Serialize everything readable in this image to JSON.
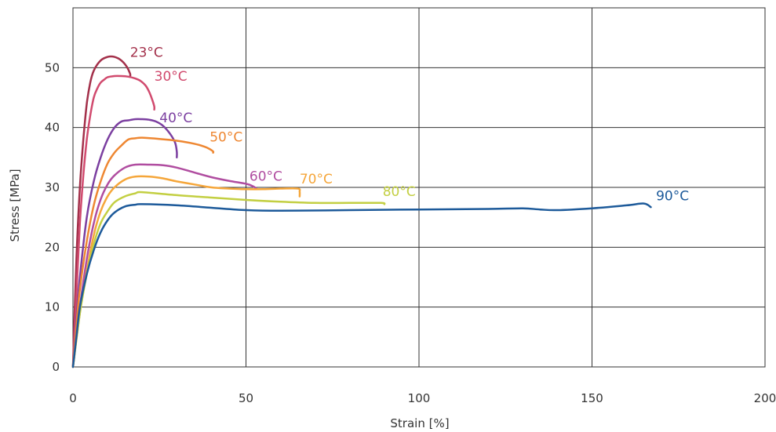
{
  "chart_data": {
    "type": "line",
    "title": "",
    "xlabel": "Strain [%]",
    "ylabel": "Stress [MPa]",
    "xlim": [
      0,
      200
    ],
    "ylim": [
      0,
      60
    ],
    "xticks": [
      0,
      50,
      100,
      150,
      200
    ],
    "yticks": [
      0,
      10,
      20,
      30,
      40,
      50
    ],
    "xtick_labels": [
      "0",
      "50",
      "100",
      "150",
      "200"
    ],
    "ytick_labels": [
      "0",
      "10",
      "20",
      "30",
      "40",
      "50"
    ],
    "grid": true,
    "legend": "inline labels at curve ends",
    "series": [
      {
        "name": "23°C",
        "color": "#a3304a",
        "label_at": [
          16.5,
          52.5
        ],
        "x": [
          0,
          1,
          2,
          3,
          4,
          5,
          6,
          8,
          10,
          12,
          14,
          15.5,
          16.5,
          16.5
        ],
        "y": [
          0,
          18,
          30,
          38,
          44,
          47.5,
          49.5,
          51.2,
          51.8,
          51.8,
          51.2,
          50.2,
          49,
          48.5
        ]
      },
      {
        "name": "30°C",
        "color": "#d14a6e",
        "label_at": [
          23.5,
          48.5
        ],
        "x": [
          0,
          1,
          2,
          3,
          4,
          5,
          6,
          7,
          8,
          9,
          10,
          12,
          14,
          16,
          18,
          19.5,
          21,
          22,
          23,
          23.5,
          23.5
        ],
        "y": [
          0,
          12,
          24,
          32,
          38,
          42,
          45,
          46.5,
          47.5,
          48,
          48.4,
          48.6,
          48.6,
          48.5,
          48.2,
          47.8,
          47,
          46,
          44.5,
          43.5,
          43
        ]
      },
      {
        "name": "40°C",
        "color": "#7b3fa0",
        "label_at": [
          25,
          41.5
        ],
        "x": [
          0,
          1,
          2,
          4,
          6,
          8,
          10,
          12,
          14,
          16,
          18,
          20,
          22,
          24,
          26,
          28,
          29.5,
          30,
          30
        ],
        "y": [
          0,
          8,
          15,
          25,
          31,
          35,
          38,
          40,
          41,
          41.2,
          41.4,
          41.4,
          41.3,
          41,
          40.3,
          39,
          37.5,
          36,
          35
        ]
      },
      {
        "name": "50°C",
        "color": "#ee8732",
        "label_at": [
          39.5,
          38.3
        ],
        "x": [
          0,
          1,
          2,
          4,
          6,
          8,
          10,
          12,
          14,
          16,
          18,
          20,
          25,
          30,
          35,
          38,
          39.5,
          40.5,
          40.5
        ],
        "y": [
          0,
          7,
          13,
          21,
          27,
          31,
          34,
          35.8,
          37,
          38,
          38.2,
          38.3,
          38.1,
          37.8,
          37.3,
          36.8,
          36.4,
          36,
          35.8
        ]
      },
      {
        "name": "60°C",
        "color": "#b04da0",
        "label_at": [
          51,
          31.8
        ],
        "x": [
          0,
          2,
          4,
          6,
          8,
          10,
          12,
          15,
          18,
          22,
          26,
          30,
          35,
          40,
          45,
          50,
          52,
          53
        ],
        "y": [
          0,
          10,
          18,
          24,
          28,
          30.5,
          32,
          33.3,
          33.8,
          33.8,
          33.7,
          33.3,
          32.5,
          31.7,
          31.1,
          30.6,
          30.2,
          29.8
        ]
      },
      {
        "name": "70°C",
        "color": "#f5a63a",
        "label_at": [
          65.5,
          31.3
        ],
        "x": [
          0,
          2,
          4,
          6,
          8,
          10,
          12,
          15,
          18,
          22,
          26,
          30,
          35,
          40,
          45,
          50,
          55,
          60,
          65,
          65.5,
          65.5
        ],
        "y": [
          0,
          9,
          16,
          22,
          26,
          28.5,
          30,
          31.3,
          31.8,
          31.8,
          31.5,
          31,
          30.5,
          30,
          29.8,
          29.7,
          29.7,
          29.8,
          29.8,
          29.3,
          28.5
        ]
      },
      {
        "name": "80°C",
        "color": "#c3cf42",
        "label_at": [
          89.5,
          29.2
        ],
        "x": [
          0,
          2,
          4,
          6,
          8,
          10,
          12,
          15,
          18,
          20,
          30,
          40,
          50,
          60,
          70,
          80,
          89,
          90
        ],
        "y": [
          0,
          9,
          15.5,
          20.5,
          24,
          26,
          27.5,
          28.5,
          29,
          29.2,
          28.7,
          28.3,
          27.9,
          27.6,
          27.4,
          27.4,
          27.4,
          27.2
        ]
      },
      {
        "name": "90°C",
        "color": "#1d5a9a",
        "label_at": [
          168.5,
          28.5
        ],
        "x": [
          0,
          1,
          2,
          4,
          6,
          8,
          10,
          12,
          15,
          18,
          20,
          30,
          40,
          50,
          60,
          80,
          100,
          120,
          130,
          135,
          140,
          150,
          160,
          165,
          167
        ],
        "y": [
          0,
          5,
          10,
          15.5,
          19.5,
          22.5,
          24.5,
          25.8,
          26.8,
          27.1,
          27.2,
          27,
          26.6,
          26.2,
          26.1,
          26.2,
          26.3,
          26.4,
          26.5,
          26.3,
          26.2,
          26.5,
          27,
          27.3,
          26.7
        ]
      }
    ]
  }
}
